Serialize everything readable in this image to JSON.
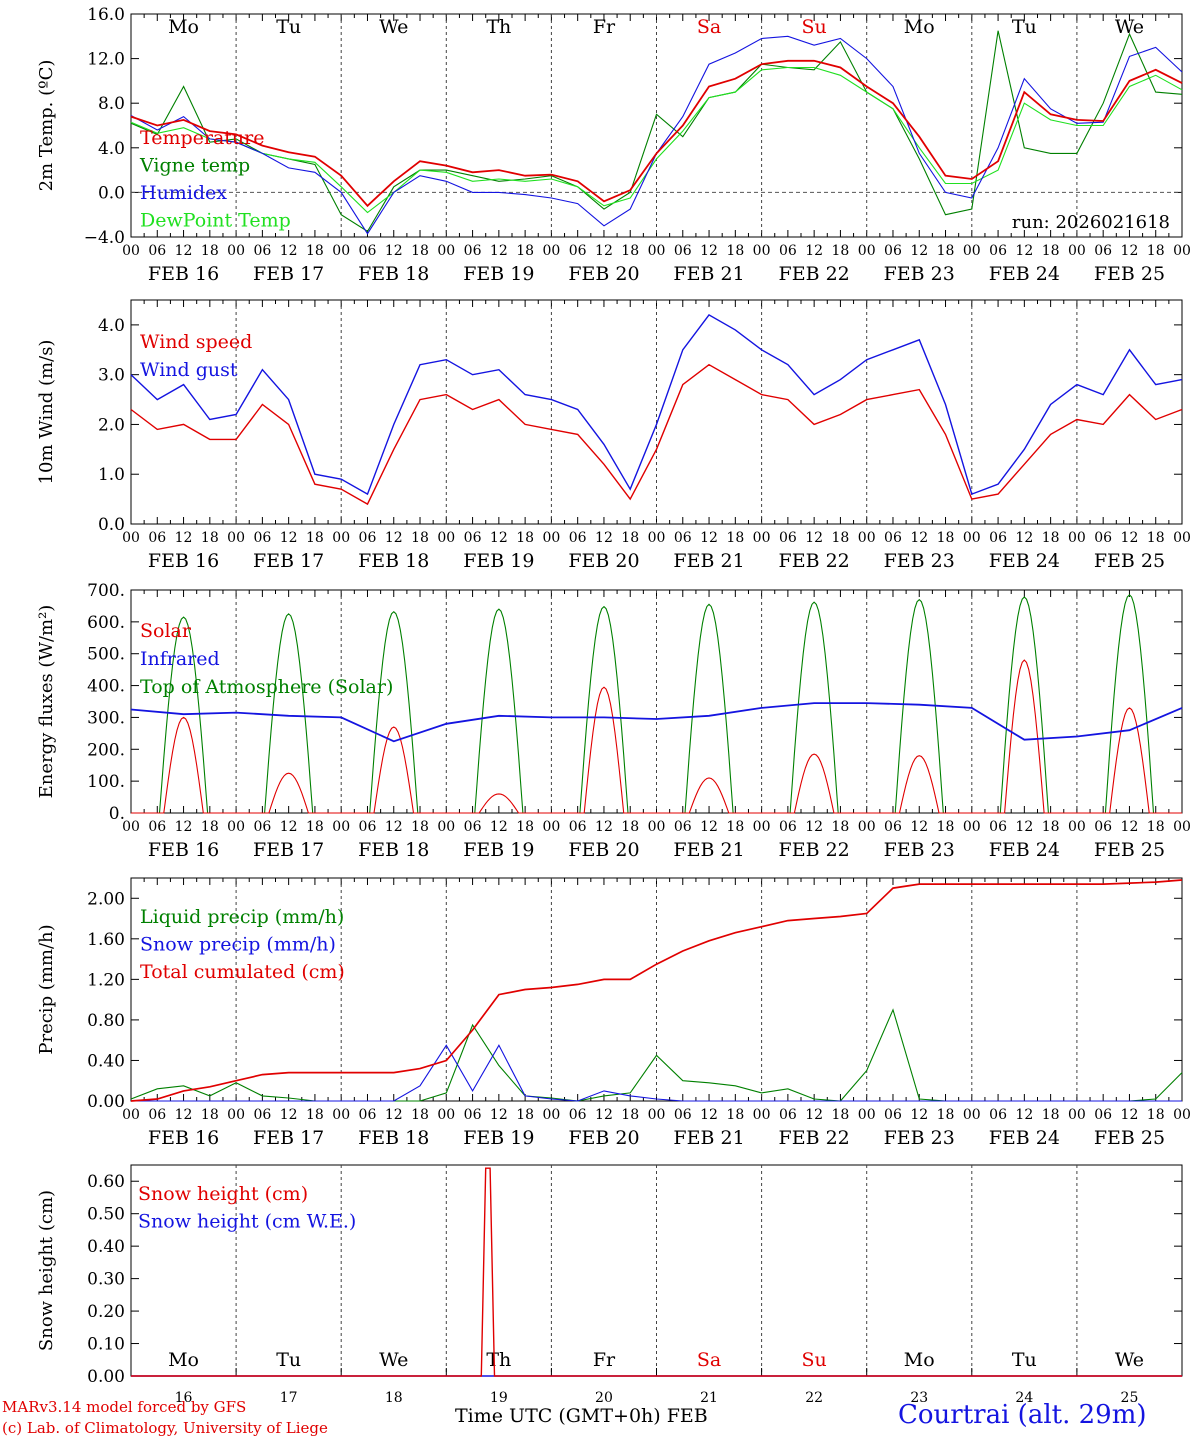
{
  "chart_data": [
    {
      "type": "line",
      "ylabel": "2m Temp. (ºC)",
      "ylim": [
        -4.0,
        16.0
      ],
      "yticks": [
        "16.0",
        "12.0",
        "8.0",
        "4.0",
        "0.0",
        "−4.0"
      ],
      "zero_dashed": true,
      "annotation": "run: 2026021618",
      "legend": [
        "Temperature",
        "Vigne temp",
        "Humidex",
        "DewPoint Temp"
      ],
      "x_hours": [
        0,
        6,
        12,
        18,
        24,
        30,
        36,
        42,
        48,
        54,
        60,
        66,
        72,
        78,
        84,
        90,
        96,
        102,
        108,
        114,
        120,
        126,
        132,
        138,
        144,
        150,
        156,
        162,
        168,
        174,
        180,
        186,
        192,
        198,
        204,
        210,
        216,
        222,
        228,
        234,
        240
      ],
      "series": [
        {
          "name": "Temperature",
          "color": "#e00000",
          "values": [
            6.8,
            6.0,
            6.5,
            5.5,
            5.2,
            4.2,
            3.6,
            3.2,
            1.5,
            -1.2,
            1.0,
            2.8,
            2.4,
            1.8,
            2.0,
            1.5,
            1.6,
            1.0,
            -0.8,
            0.2,
            3.5,
            6.0,
            9.5,
            10.2,
            11.5,
            11.8,
            11.8,
            11.2,
            9.5,
            8.0,
            5.0,
            1.5,
            1.2,
            2.8,
            9.0,
            7.0,
            6.5,
            6.4,
            10.0,
            11.0,
            9.8
          ]
        },
        {
          "name": "Vigne temp",
          "color": "#008000",
          "values": [
            6.2,
            5.2,
            9.5,
            4.5,
            4.8,
            3.5,
            3.0,
            2.5,
            -2.0,
            -3.5,
            0.5,
            2.0,
            2.0,
            1.5,
            1.0,
            1.2,
            1.5,
            0.5,
            -1.5,
            0.0,
            7.0,
            5.0,
            8.5,
            9.0,
            11.5,
            11.2,
            11.0,
            13.5,
            9.0,
            7.5,
            3.0,
            -2.0,
            -1.5,
            14.5,
            4.0,
            3.5,
            3.5,
            8.0,
            14.2,
            9.0,
            8.8
          ]
        },
        {
          "name": "Humidex",
          "color": "#1414e0",
          "values": [
            6.9,
            5.6,
            6.8,
            4.8,
            4.5,
            3.5,
            2.2,
            1.8,
            0.0,
            -3.7,
            0.0,
            1.5,
            1.0,
            0.0,
            0.0,
            -0.2,
            -0.5,
            -1.0,
            -3.0,
            -1.5,
            3.5,
            6.8,
            11.5,
            12.5,
            13.8,
            14.0,
            13.2,
            13.8,
            12.0,
            9.5,
            3.5,
            0.0,
            -0.5,
            4.0,
            10.2,
            7.5,
            6.2,
            6.3,
            12.2,
            13.0,
            10.8
          ]
        },
        {
          "name": "DewPoint Temp",
          "color": "#20e020",
          "values": [
            6.3,
            5.3,
            5.8,
            4.8,
            4.5,
            3.5,
            3.0,
            2.7,
            0.5,
            -1.8,
            0.0,
            2.0,
            1.8,
            1.0,
            1.2,
            1.0,
            1.2,
            0.5,
            -1.2,
            -0.5,
            3.0,
            5.5,
            8.5,
            9.0,
            11.0,
            11.2,
            11.2,
            10.5,
            9.0,
            7.5,
            4.0,
            0.8,
            0.8,
            2.0,
            8.0,
            6.5,
            6.0,
            6.0,
            9.5,
            10.5,
            9.2
          ]
        }
      ]
    },
    {
      "type": "line",
      "ylabel": "10m Wind (m/s)",
      "ylim": [
        0.0,
        4.5
      ],
      "yticks": [
        "4.0",
        "3.0",
        "2.0",
        "1.0",
        "0.0"
      ],
      "legend": [
        "Wind speed",
        "Wind gust"
      ],
      "x_hours": [
        0,
        6,
        12,
        18,
        24,
        30,
        36,
        42,
        48,
        54,
        60,
        66,
        72,
        78,
        84,
        90,
        96,
        102,
        108,
        114,
        120,
        126,
        132,
        138,
        144,
        150,
        156,
        162,
        168,
        174,
        180,
        186,
        192,
        198,
        204,
        210,
        216,
        222,
        228,
        234,
        240
      ],
      "series": [
        {
          "name": "Wind speed",
          "color": "#e00000",
          "values": [
            2.3,
            1.9,
            2.0,
            1.7,
            1.7,
            2.4,
            2.0,
            0.8,
            0.7,
            0.4,
            1.5,
            2.5,
            2.6,
            2.3,
            2.5,
            2.0,
            1.9,
            1.8,
            1.2,
            0.5,
            1.5,
            2.8,
            3.2,
            2.9,
            2.6,
            2.5,
            2.0,
            2.2,
            2.5,
            2.6,
            2.7,
            1.8,
            0.5,
            0.6,
            1.2,
            1.8,
            2.1,
            2.0,
            2.6,
            2.1,
            2.3
          ]
        },
        {
          "name": "Wind gust",
          "color": "#1414e0",
          "values": [
            3.0,
            2.5,
            2.8,
            2.1,
            2.2,
            3.1,
            2.5,
            1.0,
            0.9,
            0.6,
            2.0,
            3.2,
            3.3,
            3.0,
            3.1,
            2.6,
            2.5,
            2.3,
            1.6,
            0.7,
            2.0,
            3.5,
            4.2,
            3.9,
            3.5,
            3.2,
            2.6,
            2.9,
            3.3,
            3.5,
            3.7,
            2.4,
            0.6,
            0.8,
            1.5,
            2.4,
            2.8,
            2.6,
            3.5,
            2.8,
            2.9
          ]
        }
      ]
    },
    {
      "type": "line",
      "ylabel": "Energy fluxes (W/m²)",
      "ylim": [
        0,
        700
      ],
      "yticks": [
        "700.",
        "600.",
        "500.",
        "400.",
        "300.",
        "200.",
        "100.",
        "0."
      ],
      "legend": [
        "Solar",
        "Infrared",
        "Top of Atmosphere (Solar)"
      ],
      "diurnal": {
        "toa_peaks": [
          615,
          625,
          632,
          640,
          648,
          655,
          662,
          670,
          678,
          685
        ],
        "solar_peaks": [
          300,
          125,
          270,
          60,
          395,
          110,
          185,
          180,
          480,
          330
        ]
      },
      "x_hours": [
        0,
        12,
        24,
        36,
        48,
        60,
        72,
        84,
        96,
        108,
        120,
        132,
        144,
        156,
        168,
        180,
        192,
        204,
        216,
        228,
        240
      ],
      "series": [
        {
          "name": "Infrared",
          "color": "#1414e0",
          "values": [
            325,
            310,
            315,
            305,
            300,
            225,
            280,
            305,
            300,
            300,
            295,
            305,
            330,
            345,
            345,
            340,
            330,
            230,
            240,
            260,
            330
          ]
        }
      ],
      "series_colors": {
        "Solar": "#e00000",
        "Top of Atmosphere (Solar)": "#008000"
      }
    },
    {
      "type": "line",
      "ylabel": "Precip (mm/h)",
      "ylim": [
        0.0,
        2.2
      ],
      "yticks": [
        "2.00",
        "1.60",
        "1.20",
        "0.80",
        "0.40",
        "0.00"
      ],
      "legend": [
        "Liquid precip (mm/h)",
        "Snow precip (mm/h)",
        "Total cumulated (cm)"
      ],
      "x_hours": [
        0,
        6,
        12,
        18,
        24,
        30,
        36,
        42,
        48,
        54,
        60,
        66,
        72,
        78,
        84,
        90,
        96,
        102,
        108,
        114,
        120,
        126,
        132,
        138,
        144,
        150,
        156,
        162,
        168,
        174,
        180,
        186,
        192,
        198,
        204,
        210,
        216,
        222,
        228,
        234,
        240
      ],
      "series": [
        {
          "name": "Liquid precip (mm/h)",
          "color": "#008000",
          "values": [
            0.02,
            0.12,
            0.15,
            0.05,
            0.18,
            0.05,
            0.03,
            0.0,
            0.0,
            0.0,
            0.0,
            0.0,
            0.08,
            0.75,
            0.35,
            0.05,
            0.03,
            0.0,
            0.05,
            0.08,
            0.45,
            0.2,
            0.18,
            0.15,
            0.08,
            0.12,
            0.02,
            0.0,
            0.3,
            0.9,
            0.02,
            0.0,
            0.0,
            0.0,
            0.0,
            0.0,
            0.0,
            0.0,
            0.0,
            0.02,
            0.28
          ]
        },
        {
          "name": "Snow precip (mm/h)",
          "color": "#1414e0",
          "values": [
            0.0,
            0.0,
            0.0,
            0.0,
            0.0,
            0.0,
            0.0,
            0.0,
            0.0,
            0.0,
            0.0,
            0.15,
            0.55,
            0.1,
            0.55,
            0.05,
            0.02,
            0.0,
            0.1,
            0.05,
            0.02,
            0.0,
            0.0,
            0.0,
            0.0,
            0.0,
            0.0,
            0.0,
            0.0,
            0.0,
            0.0,
            0.0,
            0.0,
            0.0,
            0.0,
            0.0,
            0.0,
            0.0,
            0.0,
            0.0,
            0.0
          ]
        },
        {
          "name": "Total cumulated (cm)",
          "color": "#e00000",
          "values": [
            0.0,
            0.02,
            0.1,
            0.14,
            0.2,
            0.26,
            0.28,
            0.28,
            0.28,
            0.28,
            0.28,
            0.32,
            0.4,
            0.7,
            1.05,
            1.1,
            1.12,
            1.15,
            1.2,
            1.2,
            1.35,
            1.48,
            1.58,
            1.66,
            1.72,
            1.78,
            1.8,
            1.82,
            1.85,
            2.1,
            2.14,
            2.14,
            2.14,
            2.14,
            2.14,
            2.14,
            2.14,
            2.14,
            2.15,
            2.16,
            2.18
          ]
        }
      ]
    },
    {
      "type": "line",
      "ylabel": "Snow height (cm)",
      "ylim": [
        0.0,
        0.65
      ],
      "yticks": [
        "0.60",
        "0.50",
        "0.40",
        "0.30",
        "0.20",
        "0.10",
        "0.00"
      ],
      "legend": [
        "Snow height (cm)",
        "Snow height (cm W.E.)"
      ],
      "x_hours": [
        0,
        80,
        81,
        82,
        83,
        240
      ],
      "series": [
        {
          "name": "Snow height (cm)",
          "color": "#e00000",
          "values": [
            0.0,
            0.0,
            0.64,
            0.64,
            0.0,
            0.0
          ]
        },
        {
          "name": "Snow height (cm W.E.)",
          "color": "#1414e0",
          "values": [
            0.0,
            0.0,
            0.0,
            0.0,
            0.0,
            0.0
          ]
        }
      ]
    }
  ],
  "axis": {
    "hour_ticks": [
      "00",
      "06",
      "12",
      "18"
    ],
    "end_tick": "00",
    "date_labels": [
      "FEB 16",
      "FEB 17",
      "FEB 18",
      "FEB 19",
      "FEB 20",
      "FEB 21",
      "FEB 22",
      "FEB 23",
      "FEB 24",
      "FEB 25"
    ],
    "weekdays": [
      "Mo",
      "Tu",
      "We",
      "Th",
      "Fr",
      "Sa",
      "Su",
      "Mo",
      "Tu",
      "We"
    ],
    "weekday_colors": [
      "#000000",
      "#000000",
      "#000000",
      "#000000",
      "#000000",
      "#e00000",
      "#e00000",
      "#000000",
      "#000000",
      "#000000"
    ],
    "day_numbers": [
      "16",
      "17",
      "18",
      "19",
      "20",
      "21",
      "22",
      "23",
      "24",
      "25"
    ]
  },
  "colors": {
    "red": "#e00000",
    "green": "#008000",
    "blue": "#1414e0",
    "lightgreen": "#20e020"
  },
  "footer": {
    "line1": "MARv3.14 model forced by GFS",
    "line2": "(c) Lab. of Climatology, University of Liege",
    "xlabel": "Time UTC (GMT+0h) FEB",
    "station": "Courtrai (alt. 29m)"
  }
}
